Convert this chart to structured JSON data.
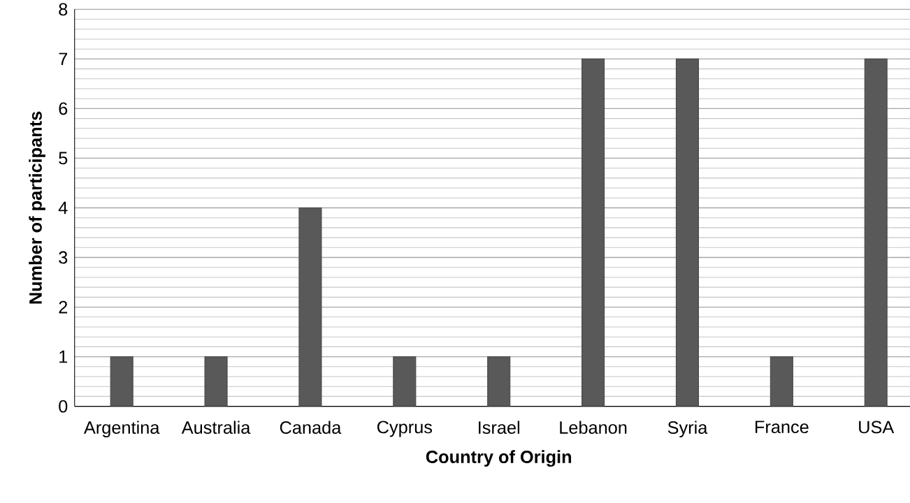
{
  "chart_data": {
    "type": "bar",
    "xlabel": "Country of Origin",
    "ylabel": "Number of participants",
    "categories": [
      "Argentina",
      "Australia",
      "Canada",
      "Cyprus",
      "Israel",
      "Lebanon",
      "Syria",
      "France",
      "USA"
    ],
    "values": [
      1,
      1,
      4,
      1,
      1,
      7,
      7,
      1,
      7
    ],
    "color": "#595959",
    "ylim": [
      0,
      8
    ],
    "yticks": [
      0,
      1,
      2,
      3,
      4,
      5,
      6,
      7,
      8
    ],
    "grid": "y"
  }
}
